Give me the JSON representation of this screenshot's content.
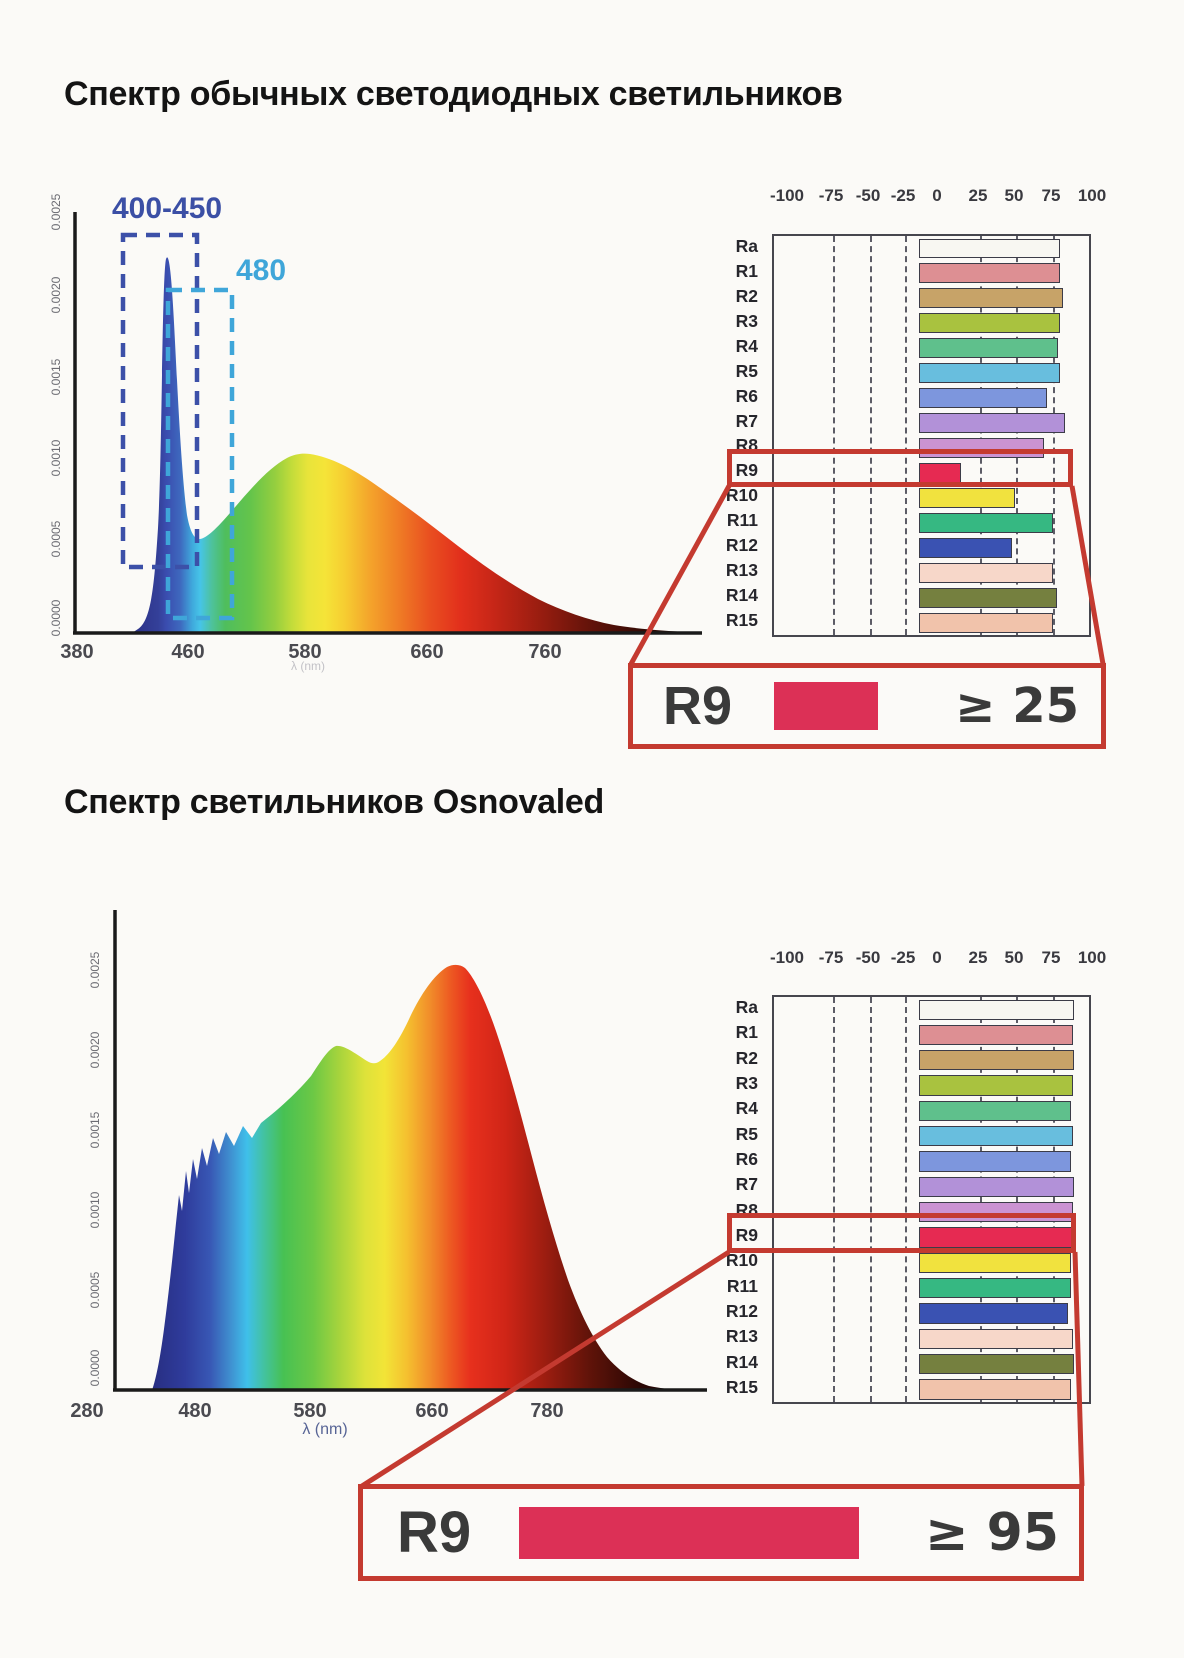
{
  "accent": {
    "callout_red": "#c43a30",
    "summary_bar": "#dc3056",
    "navy": "#3b4fa5",
    "cyan": "#3fa6d9"
  },
  "section_top": {
    "title": "Спектр обычных светодиодных светильников",
    "spectrum": {
      "y_ticks": [
        "0.0025",
        "0.0020",
        "0.0015",
        "0.0010",
        "0.0005",
        "0.0000"
      ],
      "x_ticks": [
        "380",
        "460",
        "580",
        "660",
        "760"
      ],
      "axis_label": "λ (nm)",
      "annotation_range": "400-450",
      "annotation_peak": "480"
    },
    "cri_table": {
      "header_ticks": [
        "-100",
        "-75",
        "-50",
        "-25",
        "0",
        "25",
        "50",
        "75",
        "100"
      ],
      "rows": [
        {
          "label": "Ra",
          "value": 88,
          "color": "#f8f7f2"
        },
        {
          "label": "R1",
          "value": 88,
          "color": "#dd8f93"
        },
        {
          "label": "R2",
          "value": 90,
          "color": "#c7a368"
        },
        {
          "label": "R3",
          "value": 88,
          "color": "#a9c23f"
        },
        {
          "label": "R4",
          "value": 87,
          "color": "#5fc08c"
        },
        {
          "label": "R5",
          "value": 88,
          "color": "#68bede"
        },
        {
          "label": "R6",
          "value": 80,
          "color": "#7d96dd"
        },
        {
          "label": "R7",
          "value": 91,
          "color": "#b291d8"
        },
        {
          "label": "R8",
          "value": 78,
          "color": "#cb93d2"
        },
        {
          "label": "R9",
          "value": 26,
          "color": "#e62a52"
        },
        {
          "label": "R10",
          "value": 60,
          "color": "#f1e23e"
        },
        {
          "label": "R11",
          "value": 84,
          "color": "#36b882"
        },
        {
          "label": "R12",
          "value": 58,
          "color": "#3a52b2"
        },
        {
          "label": "R13",
          "value": 84,
          "color": "#f7d7c9"
        },
        {
          "label": "R14",
          "value": 86,
          "color": "#75803f"
        },
        {
          "label": "R15",
          "value": 84,
          "color": "#f1c3ab"
        }
      ]
    },
    "callout": {
      "label": "R9",
      "value": "≥ 25"
    }
  },
  "section_bottom": {
    "title": "Спектр светильников Osnovaled",
    "spectrum": {
      "y_ticks": [
        "0.0025",
        "0.0020",
        "0.0015",
        "0.0010",
        "0.0005",
        "0.0000"
      ],
      "x_ticks": [
        "280",
        "480",
        "580",
        "660",
        "780"
      ],
      "axis_label": "λ (nm)"
    },
    "cri_table": {
      "header_ticks": [
        "-100",
        "-75",
        "-50",
        "-25",
        "0",
        "25",
        "50",
        "75",
        "100"
      ],
      "rows": [
        {
          "label": "Ra",
          "value": 97,
          "color": "#f8f7f2"
        },
        {
          "label": "R1",
          "value": 96,
          "color": "#dd8f93"
        },
        {
          "label": "R2",
          "value": 97,
          "color": "#c7a368"
        },
        {
          "label": "R3",
          "value": 96,
          "color": "#a9c23f"
        },
        {
          "label": "R4",
          "value": 95,
          "color": "#5fc08c"
        },
        {
          "label": "R5",
          "value": 96,
          "color": "#68bede"
        },
        {
          "label": "R6",
          "value": 95,
          "color": "#7d96dd"
        },
        {
          "label": "R7",
          "value": 97,
          "color": "#b291d8"
        },
        {
          "label": "R8",
          "value": 96,
          "color": "#cb93d2"
        },
        {
          "label": "R9",
          "value": 96,
          "color": "#e62a52"
        },
        {
          "label": "R10",
          "value": 95,
          "color": "#f1e23e"
        },
        {
          "label": "R11",
          "value": 95,
          "color": "#36b882"
        },
        {
          "label": "R12",
          "value": 93,
          "color": "#3a52b2"
        },
        {
          "label": "R13",
          "value": 96,
          "color": "#f7d7c9"
        },
        {
          "label": "R14",
          "value": 97,
          "color": "#75803f"
        },
        {
          "label": "R15",
          "value": 95,
          "color": "#f1c3ab"
        }
      ]
    },
    "callout": {
      "label": "R9",
      "value": "≥ 95"
    }
  },
  "chart_data": [
    {
      "type": "area",
      "title": "Спектр обычных светодиодных светильников",
      "xlabel": "λ (nm)",
      "ylabel": "",
      "x_ticks": [
        380,
        460,
        580,
        660,
        760
      ],
      "y_ticks": [
        0.0,
        0.0005,
        0.001,
        0.0015,
        0.002,
        0.0025
      ],
      "annotations": [
        {
          "text": "400-450",
          "range_nm": [
            400,
            450
          ]
        },
        {
          "text": "480",
          "range_nm": [
            450,
            490
          ]
        }
      ],
      "points": [
        [
          380,
          0.0
        ],
        [
          400,
          0.0002
        ],
        [
          415,
          0.0007
        ],
        [
          430,
          0.0015
        ],
        [
          445,
          0.0024
        ],
        [
          455,
          0.0014
        ],
        [
          465,
          0.0008
        ],
        [
          478,
          0.0006
        ],
        [
          495,
          0.0008
        ],
        [
          515,
          0.001
        ],
        [
          540,
          0.0011
        ],
        [
          555,
          0.00113
        ],
        [
          575,
          0.00105
        ],
        [
          600,
          0.0009
        ],
        [
          625,
          0.0007
        ],
        [
          650,
          0.0005
        ],
        [
          675,
          0.0003
        ],
        [
          700,
          0.00015
        ],
        [
          730,
          5e-05
        ],
        [
          760,
          0.0
        ]
      ],
      "legend": null,
      "grid": false
    },
    {
      "type": "bar",
      "orientation": "horizontal",
      "title": "CRI обычных светодиодных светильников",
      "categories": [
        "Ra",
        "R1",
        "R2",
        "R3",
        "R4",
        "R5",
        "R6",
        "R7",
        "R8",
        "R9",
        "R10",
        "R11",
        "R12",
        "R13",
        "R14",
        "R15"
      ],
      "values": [
        88,
        88,
        90,
        88,
        87,
        88,
        80,
        91,
        78,
        26,
        60,
        84,
        58,
        84,
        86,
        84
      ],
      "xlim": [
        -100,
        100
      ],
      "highlight": {
        "category": "R9",
        "note": "≥ 25"
      }
    },
    {
      "type": "area",
      "title": "Спектр светильников Osnovaled",
      "xlabel": "λ (nm)",
      "ylabel": "",
      "x_ticks": [
        280,
        480,
        580,
        660,
        780
      ],
      "y_ticks": [
        0.0,
        0.0005,
        0.001,
        0.0015,
        0.002,
        0.0025
      ],
      "points": [
        [
          280,
          0.0
        ],
        [
          300,
          0.0001
        ],
        [
          320,
          0.0006
        ],
        [
          340,
          0.0011
        ],
        [
          355,
          0.0012
        ],
        [
          370,
          0.00125
        ],
        [
          390,
          0.0013
        ],
        [
          410,
          0.0014
        ],
        [
          440,
          0.0016
        ],
        [
          470,
          0.0019
        ],
        [
          495,
          0.00205
        ],
        [
          505,
          0.00205
        ],
        [
          520,
          0.00198
        ],
        [
          540,
          0.0021
        ],
        [
          565,
          0.0024
        ],
        [
          585,
          0.00255
        ],
        [
          600,
          0.00257
        ],
        [
          615,
          0.0025
        ],
        [
          635,
          0.0022
        ],
        [
          655,
          0.0017
        ],
        [
          675,
          0.0012
        ],
        [
          695,
          0.0007
        ],
        [
          715,
          0.0004
        ],
        [
          740,
          0.0002
        ],
        [
          760,
          0.0001
        ],
        [
          780,
          0.0
        ]
      ],
      "legend": null,
      "grid": false
    },
    {
      "type": "bar",
      "orientation": "horizontal",
      "title": "CRI светильников Osnovaled",
      "categories": [
        "Ra",
        "R1",
        "R2",
        "R3",
        "R4",
        "R5",
        "R6",
        "R7",
        "R8",
        "R9",
        "R10",
        "R11",
        "R12",
        "R13",
        "R14",
        "R15"
      ],
      "values": [
        97,
        96,
        97,
        96,
        95,
        96,
        95,
        97,
        96,
        96,
        95,
        95,
        93,
        96,
        97,
        95
      ],
      "xlim": [
        -100,
        100
      ],
      "highlight": {
        "category": "R9",
        "note": "≥ 95"
      }
    }
  ]
}
